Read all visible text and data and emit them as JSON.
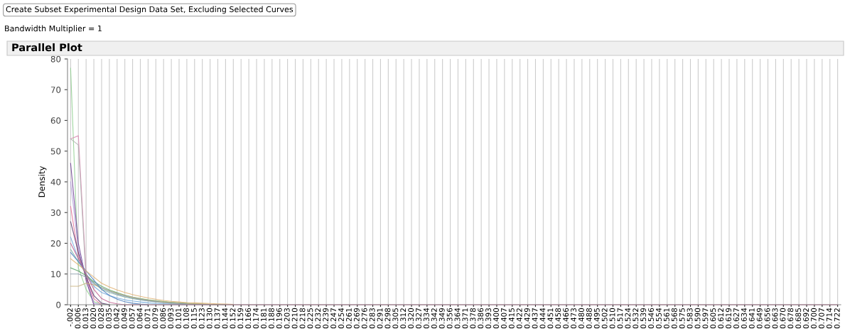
{
  "chart_data": {
    "type": "line",
    "title": "Parallel Plot",
    "ylabel": "Density",
    "annotations": [
      "Create Subset Experimental Design Data Set, Excluding Selected Curves",
      "Bandwidth Multiplier = 1"
    ],
    "categories": [
      "-.002",
      "0.006",
      "0.013",
      "0.020",
      "0.028",
      "0.035",
      "0.042",
      "0.049",
      "0.057",
      "0.064",
      "0.071",
      "0.079",
      "0.086",
      "0.093",
      "0.101",
      "0.108",
      "0.115",
      "0.123",
      "0.130",
      "0.137",
      "0.144",
      "0.152",
      "0.159",
      "0.166",
      "0.174",
      "0.181",
      "0.188",
      "0.196",
      "0.203",
      "0.210",
      "0.218",
      "0.225",
      "0.232",
      "0.239",
      "0.247",
      "0.254",
      "0.261",
      "0.269",
      "0.276",
      "0.283",
      "0.291",
      "0.298",
      "0.305",
      "0.312",
      "0.320",
      "0.327",
      "0.334",
      "0.342",
      "0.349",
      "0.356",
      "0.364",
      "0.371",
      "0.378",
      "0.386",
      "0.393",
      "0.400",
      "0.407",
      "0.415",
      "0.422",
      "0.429",
      "0.437",
      "0.444",
      "0.451",
      "0.458",
      "0.466",
      "0.473",
      "0.480",
      "0.488",
      "0.495",
      "0.502",
      "0.510",
      "0.517",
      "0.524",
      "0.532",
      "0.539",
      "0.546",
      "0.554",
      "0.561",
      "0.568",
      "0.575",
      "0.583",
      "0.590",
      "0.597",
      "0.605",
      "0.612",
      "0.619",
      "0.627",
      "0.634",
      "0.641",
      "0.649",
      "0.656",
      "0.663",
      "0.670",
      "0.678",
      "0.685",
      "0.692",
      "0.700",
      "0.707",
      "0.714",
      "0.722"
    ],
    "series": [
      {
        "color": "#8fcf8f",
        "values": [
          77,
          12,
          5,
          1,
          0.2,
          0,
          null,
          null,
          null,
          null,
          null,
          null,
          null,
          null,
          null,
          null,
          null,
          null,
          null,
          null,
          null,
          null,
          null,
          null,
          null,
          null,
          null,
          null,
          null,
          null,
          null,
          null,
          null,
          null,
          null,
          null,
          null,
          null,
          null,
          null,
          null,
          null,
          null,
          null,
          null,
          null,
          null,
          null,
          null,
          null,
          null,
          null,
          null,
          null,
          null,
          null,
          null,
          null,
          null,
          null,
          null,
          null,
          null,
          null,
          null,
          null,
          null,
          null,
          null,
          null,
          null,
          null,
          null,
          null,
          null,
          null,
          null,
          null,
          null,
          null,
          null,
          null,
          null,
          null,
          null,
          null,
          null,
          null,
          null,
          null,
          null,
          null,
          null,
          null,
          null,
          null,
          null,
          null,
          null,
          null
        ]
      },
      {
        "color": "#d98cb3",
        "values": [
          54,
          55,
          10,
          0,
          null,
          null,
          null,
          null,
          null,
          null,
          null,
          null,
          null,
          null,
          null,
          null,
          null,
          null,
          null,
          null,
          null,
          null,
          null,
          null,
          null,
          null,
          null,
          null,
          null,
          null,
          null,
          null,
          null,
          null,
          null,
          null,
          null,
          null,
          null,
          null,
          null,
          null,
          null,
          null,
          null,
          null,
          null,
          null,
          null,
          null,
          null,
          null,
          null,
          null,
          null,
          null,
          null,
          null,
          null,
          null,
          null,
          null,
          null,
          null,
          null,
          null,
          null,
          null,
          null,
          null,
          null,
          null,
          null,
          null,
          null,
          null,
          null,
          null,
          null,
          null,
          null,
          null,
          null,
          null,
          null,
          null,
          null,
          null,
          null,
          null,
          null,
          null,
          null,
          null,
          null,
          null,
          null,
          null,
          null,
          null
        ]
      },
      {
        "color": "#b0b0b0",
        "values": [
          54,
          52,
          8,
          0,
          null,
          null,
          null,
          null,
          null,
          null,
          null,
          null,
          null,
          null,
          null,
          null,
          null,
          null,
          null,
          null,
          null,
          null,
          null,
          null,
          null,
          null,
          null,
          null,
          null,
          null,
          null,
          null,
          null,
          null,
          null,
          null,
          null,
          null,
          null,
          null,
          null,
          null,
          null,
          null,
          null,
          null,
          null,
          null,
          null,
          null,
          null,
          null,
          null,
          null,
          null,
          null,
          null,
          null,
          null,
          null,
          null,
          null,
          null,
          null,
          null,
          null,
          null,
          null,
          null,
          null,
          null,
          null,
          null,
          null,
          null,
          null,
          null,
          null,
          null,
          null,
          null,
          null,
          null,
          null,
          null,
          null,
          null,
          null,
          null,
          null,
          null,
          null,
          null,
          null,
          null,
          null,
          null,
          null,
          null,
          null
        ]
      },
      {
        "color": "#6a3d8f",
        "values": [
          46,
          20,
          8,
          0,
          null,
          null,
          null,
          null,
          null,
          null,
          null,
          null,
          null,
          null,
          null,
          null,
          null,
          null,
          null,
          null,
          null,
          null,
          null,
          null,
          null,
          null,
          null,
          null,
          null,
          null,
          null,
          null,
          null,
          null,
          null,
          null,
          null,
          null,
          null,
          null,
          null,
          null,
          null,
          null,
          null,
          null,
          null,
          null,
          null,
          null,
          null,
          null,
          null,
          null,
          null,
          null,
          null,
          null,
          null,
          null,
          null,
          null,
          null,
          null,
          null,
          null,
          null,
          null,
          null,
          null,
          null,
          null,
          null,
          null,
          null,
          null,
          null,
          null,
          null,
          null,
          null,
          null,
          null,
          null,
          null,
          null,
          null,
          null,
          null,
          null,
          null,
          null,
          null,
          null,
          null,
          null,
          null,
          null,
          null,
          null
        ]
      },
      {
        "color": "#b39ddb",
        "values": [
          40,
          18,
          9,
          0.5,
          0,
          null,
          null,
          null,
          null,
          null,
          null,
          null,
          null,
          null,
          null,
          null,
          null,
          null,
          null,
          null,
          null,
          null,
          null,
          null,
          null,
          null,
          null,
          null,
          null,
          null,
          null,
          null,
          null,
          null,
          null,
          null,
          null,
          null,
          null,
          null,
          null,
          null,
          null,
          null,
          null,
          null,
          null,
          null,
          null,
          null,
          null,
          null,
          null,
          null,
          null,
          null,
          null,
          null,
          null,
          null,
          null,
          null,
          null,
          null,
          null,
          null,
          null,
          null,
          null,
          null,
          null,
          null,
          null,
          null,
          null,
          null,
          null,
          null,
          null,
          null,
          null,
          null,
          null,
          null,
          null,
          null,
          null,
          null,
          null,
          null,
          null,
          null,
          null,
          null,
          null,
          null,
          null,
          null,
          null,
          null
        ]
      },
      {
        "color": "#e57399",
        "values": [
          32,
          16,
          9,
          2,
          0,
          null,
          null,
          null,
          null,
          null,
          null,
          null,
          null,
          null,
          null,
          null,
          null,
          null,
          null,
          null,
          null,
          null,
          null,
          null,
          null,
          null,
          null,
          null,
          null,
          null,
          null,
          null,
          null,
          null,
          null,
          null,
          null,
          null,
          null,
          null,
          null,
          null,
          null,
          null,
          null,
          null,
          null,
          null,
          null,
          null,
          null,
          null,
          null,
          null,
          null,
          null,
          null,
          null,
          null,
          null,
          null,
          null,
          null,
          null,
          null,
          null,
          null,
          null,
          null,
          null,
          null,
          null,
          null,
          null,
          null,
          null,
          null,
          null,
          null,
          null,
          null,
          null,
          null,
          null,
          null,
          null,
          null,
          null,
          null,
          null,
          null,
          null,
          null,
          null,
          null,
          null,
          null,
          null,
          null,
          null
        ]
      },
      {
        "color": "#5a3a6e",
        "values": [
          27,
          17,
          9,
          3,
          0.5,
          0,
          null,
          null,
          null,
          null,
          null,
          null,
          null,
          null,
          null,
          null,
          null,
          null,
          null,
          null,
          null,
          null,
          null,
          null,
          null,
          null,
          null,
          null,
          null,
          null,
          null,
          null,
          null,
          null,
          null,
          null,
          null,
          null,
          null,
          null,
          null,
          null,
          null,
          null,
          null,
          null,
          null,
          null,
          null,
          null,
          null,
          null,
          null,
          null,
          null,
          null,
          null,
          null,
          null,
          null,
          null,
          null,
          null,
          null,
          null,
          null,
          null,
          null,
          null,
          null,
          null,
          null,
          null,
          null,
          null,
          null,
          null,
          null,
          null,
          null,
          null,
          null,
          null,
          null,
          null,
          null,
          null,
          null,
          null,
          null,
          null,
          null,
          null,
          null,
          null,
          null,
          null,
          null,
          null,
          null
        ]
      },
      {
        "color": "#6fa8dc",
        "values": [
          22,
          15,
          10,
          6,
          4,
          3,
          2.2,
          1.6,
          1.2,
          0.9,
          0.6,
          0.4,
          0.3,
          0.2,
          0.1,
          0,
          null,
          null,
          null,
          null,
          null,
          null,
          null,
          null,
          null,
          null,
          null,
          null,
          null,
          null,
          null,
          null,
          null,
          null,
          null,
          null,
          null,
          null,
          null,
          null,
          null,
          null,
          null,
          null,
          null,
          null,
          null,
          null,
          null,
          null,
          null,
          null,
          null,
          null,
          null,
          null,
          null,
          null,
          null,
          null,
          null,
          null,
          null,
          null,
          null,
          null,
          null,
          null,
          null,
          null,
          null,
          null,
          null,
          null,
          null,
          null,
          null,
          null,
          null,
          null,
          null,
          null,
          null,
          null,
          null,
          null,
          null,
          null,
          null,
          null,
          null,
          null,
          null,
          null,
          null,
          null,
          null,
          null,
          null,
          null
        ]
      },
      {
        "color": "#7fb3a6",
        "values": [
          18,
          14,
          10,
          7,
          5,
          4,
          3.2,
          2.5,
          2,
          1.6,
          1.2,
          0.9,
          0.7,
          0.5,
          0.4,
          0.3,
          0.2,
          0.1,
          0.1,
          0,
          null,
          null,
          null,
          null,
          null,
          null,
          null,
          null,
          null,
          null,
          null,
          null,
          null,
          null,
          null,
          null,
          null,
          null,
          null,
          null,
          null,
          null,
          null,
          null,
          null,
          null,
          null,
          null,
          null,
          null,
          null,
          null,
          null,
          null,
          null,
          null,
          null,
          null,
          null,
          null,
          null,
          null,
          null,
          null,
          null,
          null,
          null,
          null,
          null,
          null,
          null,
          null,
          null,
          null,
          null,
          null,
          null,
          null,
          null,
          null,
          null,
          null,
          null,
          null,
          null,
          null,
          null,
          null,
          null,
          null,
          null,
          null,
          null,
          null,
          null,
          null,
          null,
          null,
          null,
          null
        ]
      },
      {
        "color": "#5aa469",
        "values": [
          12,
          11,
          9.5,
          7.5,
          6,
          4.8,
          3.9,
          3.1,
          2.5,
          2,
          1.6,
          1.3,
          1,
          0.8,
          0.6,
          0.5,
          0.3,
          0.2,
          0.1,
          0.1,
          0,
          null,
          null,
          null,
          null,
          null,
          null,
          null,
          null,
          null,
          null,
          null,
          null,
          null,
          null,
          null,
          null,
          null,
          null,
          null,
          null,
          null,
          null,
          null,
          null,
          null,
          null,
          null,
          null,
          null,
          null,
          null,
          null,
          null,
          null,
          null,
          null,
          null,
          null,
          null,
          null,
          null,
          null,
          null,
          null,
          null,
          null,
          null,
          null,
          null,
          null,
          null,
          null,
          null,
          null,
          null,
          null,
          null,
          null,
          null,
          null,
          null,
          null,
          null,
          null,
          null,
          null,
          null,
          null,
          null,
          null,
          null,
          null,
          null,
          null,
          null,
          null,
          null,
          null,
          null
        ]
      },
      {
        "color": "#c9b27c",
        "values": [
          6,
          6,
          7,
          6.5,
          5.5,
          4.5,
          3.7,
          3,
          2.4,
          1.9,
          1.5,
          1.2,
          0.9,
          0.7,
          0.5,
          0.4,
          0.3,
          0.2,
          0.1,
          0,
          null,
          null,
          null,
          null,
          null,
          null,
          null,
          null,
          null,
          null,
          null,
          null,
          null,
          null,
          null,
          null,
          null,
          null,
          null,
          null,
          null,
          null,
          null,
          null,
          null,
          null,
          null,
          null,
          null,
          null,
          null,
          null,
          null,
          null,
          null,
          null,
          null,
          null,
          null,
          null,
          null,
          null,
          null,
          null,
          null,
          null,
          null,
          null,
          null,
          null,
          null,
          null,
          null,
          null,
          null,
          null,
          null,
          null,
          null,
          null,
          null,
          null,
          null,
          null,
          null,
          null,
          null,
          null,
          null,
          null,
          null,
          null,
          null,
          null,
          null,
          null,
          null,
          null,
          null,
          null
        ]
      },
      {
        "color": "#8899aa",
        "values": [
          10,
          10,
          9,
          7,
          5.5,
          4.4,
          3.5,
          2.8,
          2.2,
          1.7,
          1.3,
          1,
          0.7,
          0.5,
          0.4,
          0.2,
          0.1,
          0.1,
          0,
          null,
          null,
          null,
          null,
          null,
          null,
          null,
          null,
          null,
          null,
          null,
          null,
          null,
          null,
          null,
          null,
          null,
          null,
          null,
          null,
          null,
          null,
          null,
          null,
          null,
          null,
          null,
          null,
          null,
          null,
          null,
          null,
          null,
          null,
          null,
          null,
          null,
          null,
          null,
          null,
          null,
          null,
          null,
          null,
          null,
          null,
          null,
          null,
          null,
          null,
          null,
          null,
          null,
          null,
          null,
          null,
          null,
          null,
          null,
          null,
          null,
          null,
          null,
          null,
          null,
          null,
          null,
          null,
          null,
          null,
          null,
          null,
          null,
          null,
          null,
          null,
          null,
          null,
          null,
          null,
          null
        ]
      },
      {
        "color": "#4a7fbf",
        "values": [
          17,
          14,
          11,
          8,
          5,
          3,
          1.8,
          1,
          0.5,
          0.2,
          0,
          null,
          null,
          null,
          null,
          null,
          null,
          null,
          null,
          null,
          null,
          null,
          null,
          null,
          null,
          null,
          null,
          null,
          null,
          null,
          null,
          null,
          null,
          null,
          null,
          null,
          null,
          null,
          null,
          null,
          null,
          null,
          null,
          null,
          null,
          null,
          null,
          null,
          null,
          null,
          null,
          null,
          null,
          null,
          null,
          null,
          null,
          null,
          null,
          null,
          null,
          null,
          null,
          null,
          null,
          null,
          null,
          null,
          null,
          null,
          null,
          null,
          null,
          null,
          null,
          null,
          null,
          null,
          null,
          null,
          null,
          null,
          null,
          null,
          null,
          null,
          null,
          null,
          null,
          null,
          null,
          null,
          null,
          null,
          null,
          null,
          null,
          null,
          null,
          null
        ]
      },
      {
        "color": "#e0b070",
        "values": [
          15,
          13,
          11,
          9,
          7,
          5.8,
          4.8,
          4,
          3.3,
          2.7,
          2.2,
          1.8,
          1.4,
          1.1,
          0.9,
          0.7,
          0.6,
          0.5,
          0.4,
          0.3,
          0.2,
          0.1,
          null,
          null,
          null,
          null,
          null,
          null,
          null,
          null,
          null,
          null,
          null,
          null,
          null,
          null,
          null,
          null,
          null,
          null,
          null,
          null,
          null,
          null,
          null,
          null,
          null,
          null,
          null,
          null,
          null,
          null,
          null,
          null,
          null,
          null,
          null,
          null,
          null,
          null,
          null,
          null,
          null,
          null,
          null,
          null,
          null,
          null,
          null,
          null,
          null,
          null,
          null,
          null,
          null,
          null,
          null,
          null,
          null,
          null,
          null,
          null,
          null,
          null,
          null,
          null,
          null,
          null,
          null,
          null,
          null,
          null,
          null,
          null,
          null,
          null,
          null,
          null,
          null,
          null
        ]
      },
      {
        "color": "#c06090",
        "values": [
          20,
          15,
          10,
          5,
          2,
          0.8,
          0.3,
          0,
          0,
          0,
          0,
          0,
          0,
          0,
          0,
          0,
          0,
          0,
          0,
          0,
          0,
          0,
          0,
          0,
          0,
          0,
          0,
          0,
          0,
          0,
          0,
          0,
          0,
          0,
          0,
          0,
          0,
          0,
          0,
          0,
          0,
          0,
          0,
          0,
          0,
          0,
          0,
          0,
          0,
          0,
          0,
          0,
          0,
          0,
          0,
          0,
          0,
          0,
          0,
          0,
          0,
          0,
          0,
          0,
          0,
          0,
          0,
          0,
          0,
          0,
          0,
          0,
          0,
          0,
          0,
          0,
          0,
          0,
          0,
          0,
          0,
          0,
          0,
          0,
          0,
          0,
          0,
          0,
          0,
          0,
          0,
          0,
          0,
          0,
          0,
          0,
          0,
          0,
          0,
          0
        ]
      }
    ],
    "ylim": [
      0,
      80
    ],
    "yticks": [
      0,
      10,
      20,
      30,
      40,
      50,
      60,
      70,
      80
    ],
    "grid": "x",
    "legend": false,
    "marker": "none",
    "line_style": "solid"
  }
}
